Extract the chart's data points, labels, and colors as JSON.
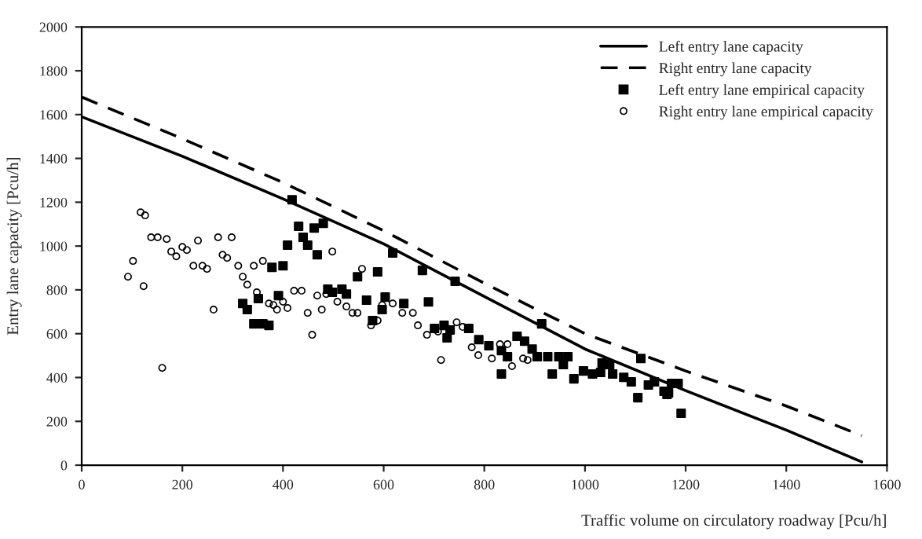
{
  "chart_data": {
    "type": "line",
    "xlabel": "Traffic volume on circulatory roadway [Pcu/h]",
    "ylabel": "Entry lane capacity [Pcu/h]",
    "xlim": [
      0,
      1600
    ],
    "xticks": [
      0,
      200,
      400,
      600,
      800,
      1000,
      1200,
      1400,
      1600
    ],
    "ylim": [
      0,
      2000
    ],
    "yticks": [
      0,
      200,
      400,
      600,
      800,
      1000,
      1200,
      1400,
      1600,
      1800,
      2000
    ],
    "grid": false,
    "legend": "top right",
    "series": [
      {
        "name": "Left entry lane capacity",
        "line_style": "solid",
        "color": "#000000",
        "x": [
          0,
          200,
          400,
          600,
          800,
          1000,
          1200,
          1400,
          1550
        ],
        "values": [
          1590,
          1410,
          1215,
          1010,
          770,
          530,
          340,
          160,
          15
        ]
      },
      {
        "name": "Right entry lane capacity",
        "line_style": "dashed",
        "color": "#000000",
        "x": [
          0,
          200,
          400,
          600,
          800,
          1000,
          1200,
          1400,
          1550
        ],
        "values": [
          1680,
          1490,
          1290,
          1070,
          830,
          600,
          430,
          270,
          135
        ]
      },
      {
        "name": "Left entry lane empirical capacity",
        "type": "scatter",
        "marker": "square",
        "color": "#000000",
        "x": [
          418,
          431,
          462,
          440,
          449,
          409,
          468,
          480,
          378,
          400,
          588,
          548,
          320,
          329,
          351,
          391,
          342,
          360,
          372,
          489,
          498,
          517,
          526,
          566,
          597,
          578,
          603,
          618,
          677,
          742,
          689,
          640,
          720,
          701,
          732,
          726,
          769,
          789,
          809,
          834,
          846,
          834,
          865,
          880,
          895,
          905,
          914,
          926,
          948,
          966,
          957,
          935,
          978,
          997,
          1015,
          1031,
          1034,
          1049,
          1055,
          1077,
          1092,
          1111,
          1105,
          1138,
          1126,
          1157,
          1172,
          1163,
          1191,
          1185,
          1166
        ],
        "values": [
          1211,
          1090,
          1082,
          1040,
          1004,
          1004,
          960,
          1104,
          903,
          910,
          882,
          860,
          738,
          710,
          760,
          774,
          645,
          645,
          638,
          803,
          789,
          803,
          781,
          753,
          710,
          660,
          767,
          968,
          889,
          839,
          745,
          738,
          638,
          624,
          617,
          581,
          624,
          573,
          545,
          523,
          495,
          416,
          588,
          566,
          530,
          495,
          645,
          495,
          495,
          495,
          459,
          416,
          394,
          430,
          416,
          423,
          466,
          459,
          416,
          401,
          380,
          487,
          308,
          380,
          366,
          337,
          373,
          323,
          237,
          373,
          330
        ]
      },
      {
        "name": "Right entry lane empirical capacity",
        "type": "scatter",
        "marker": "circle",
        "color": "#000000",
        "x": [
          117,
          126,
          138,
          151,
          169,
          102,
          92,
          123,
          160,
          178,
          188,
          200,
          209,
          231,
          222,
          240,
          249,
          271,
          298,
          280,
          289,
          311,
          342,
          360,
          320,
          329,
          262,
          348,
          372,
          381,
          388,
          400,
          409,
          422,
          437,
          449,
          458,
          468,
          477,
          498,
          486,
          508,
          526,
          538,
          548,
          557,
          597,
          588,
          575,
          618,
          637,
          658,
          668,
          686,
          708,
          714,
          745,
          757,
          775,
          788,
          815,
          831,
          846,
          855,
          877,
          886
        ],
        "values": [
          1154,
          1140,
          1040,
          1040,
          1032,
          932,
          860,
          817,
          444,
          975,
          953,
          996,
          982,
          1025,
          910,
          910,
          896,
          1040,
          1040,
          960,
          946,
          910,
          910,
          932,
          860,
          824,
          710,
          789,
          738,
          731,
          710,
          746,
          717,
          796,
          796,
          695,
          595,
          774,
          710,
          975,
          781,
          746,
          724,
          695,
          695,
          896,
          731,
          660,
          638,
          738,
          695,
          695,
          638,
          595,
          610,
          480,
          652,
          631,
          538,
          502,
          487,
          552,
          552,
          452,
          487,
          480
        ]
      }
    ]
  }
}
